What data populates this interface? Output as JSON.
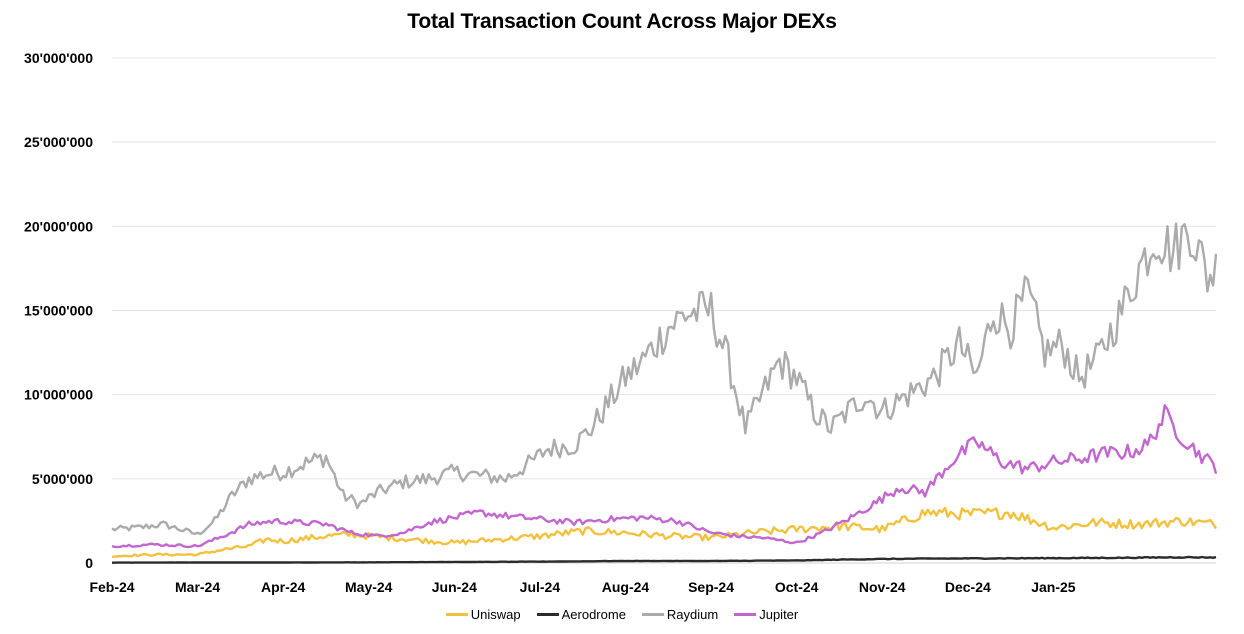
{
  "chart_data": {
    "type": "line",
    "title": "Total Transaction Count Across Major DEXs",
    "xlabel": "",
    "ylabel": "",
    "ylim": [
      0,
      30000000
    ],
    "y_ticks": [
      0,
      5000000,
      10000000,
      15000000,
      20000000,
      25000000,
      30000000
    ],
    "y_tick_labels": [
      "0",
      "5'000'000",
      "10'000'000",
      "15'000'000",
      "20'000'000",
      "25'000'000",
      "30'000'000"
    ],
    "x_tick_labels": [
      "Feb-24",
      "Mar-24",
      "Apr-24",
      "May-24",
      "Jun-24",
      "Jul-24",
      "Aug-24",
      "Sep-24",
      "Oct-24",
      "Nov-24",
      "Dec-24",
      "Jan-25"
    ],
    "x_range_months": [
      0,
      12.9
    ],
    "grid": "horizontal",
    "legend_position": "bottom",
    "series": [
      {
        "name": "Uniswap",
        "color": "#F2C13D",
        "points": [
          [
            0,
            400000
          ],
          [
            0.5,
            500000
          ],
          [
            1,
            500000
          ],
          [
            1.3,
            800000
          ],
          [
            1.6,
            1000000
          ],
          [
            1.8,
            1400000
          ],
          [
            2,
            1300000
          ],
          [
            2.5,
            1600000
          ],
          [
            2.8,
            1700000
          ],
          [
            3,
            1600000
          ],
          [
            3.5,
            1400000
          ],
          [
            4,
            1200000
          ],
          [
            4.5,
            1400000
          ],
          [
            5,
            1600000
          ],
          [
            5.5,
            1900000
          ],
          [
            6,
            1800000
          ],
          [
            6.5,
            1600000
          ],
          [
            7,
            1500000
          ],
          [
            7.5,
            1800000
          ],
          [
            8,
            2000000
          ],
          [
            8.5,
            2200000
          ],
          [
            9,
            2000000
          ],
          [
            9.3,
            2600000
          ],
          [
            9.5,
            3000000
          ],
          [
            10,
            2900000
          ],
          [
            10.5,
            3000000
          ],
          [
            11,
            2100000
          ],
          [
            11.5,
            2400000
          ],
          [
            12,
            2300000
          ],
          [
            12.5,
            2500000
          ],
          [
            12.9,
            2300000
          ]
        ]
      },
      {
        "name": "Aerodrome",
        "color": "#2B2B2B",
        "points": [
          [
            0,
            20000
          ],
          [
            1,
            30000
          ],
          [
            2,
            30000
          ],
          [
            3,
            40000
          ],
          [
            4,
            60000
          ],
          [
            5,
            80000
          ],
          [
            6,
            120000
          ],
          [
            7,
            120000
          ],
          [
            8,
            150000
          ],
          [
            8.5,
            200000
          ],
          [
            9,
            240000
          ],
          [
            9.5,
            260000
          ],
          [
            10,
            270000
          ],
          [
            10.5,
            280000
          ],
          [
            11,
            290000
          ],
          [
            11.5,
            300000
          ],
          [
            12,
            320000
          ],
          [
            12.5,
            340000
          ],
          [
            12.9,
            330000
          ]
        ]
      },
      {
        "name": "Raydium",
        "color": "#ABABAB",
        "points": [
          [
            0,
            2000000
          ],
          [
            0.3,
            2100000
          ],
          [
            0.6,
            2300000
          ],
          [
            0.8,
            2000000
          ],
          [
            1,
            1700000
          ],
          [
            1.2,
            2500000
          ],
          [
            1.4,
            4000000
          ],
          [
            1.6,
            5000000
          ],
          [
            1.8,
            5300000
          ],
          [
            2,
            5400000
          ],
          [
            2.3,
            6000000
          ],
          [
            2.5,
            6300000
          ],
          [
            2.7,
            4000000
          ],
          [
            2.9,
            3500000
          ],
          [
            3.1,
            4200000
          ],
          [
            3.4,
            4800000
          ],
          [
            3.7,
            5000000
          ],
          [
            4,
            5400000
          ],
          [
            4.3,
            5200000
          ],
          [
            4.6,
            5000000
          ],
          [
            4.9,
            6000000
          ],
          [
            5.1,
            6800000
          ],
          [
            5.4,
            7000000
          ],
          [
            5.6,
            8000000
          ],
          [
            5.8,
            9500000
          ],
          [
            6,
            11000000
          ],
          [
            6.2,
            12000000
          ],
          [
            6.5,
            14000000
          ],
          [
            6.7,
            14800000
          ],
          [
            7,
            15000000
          ],
          [
            7.2,
            12000000
          ],
          [
            7.4,
            8000000
          ],
          [
            7.6,
            10000000
          ],
          [
            7.8,
            12000000
          ],
          [
            8,
            11000000
          ],
          [
            8.2,
            9000000
          ],
          [
            8.4,
            8000000
          ],
          [
            8.6,
            9000000
          ],
          [
            8.8,
            10000000
          ],
          [
            9,
            9000000
          ],
          [
            9.3,
            10000000
          ],
          [
            9.6,
            11000000
          ],
          [
            9.9,
            13000000
          ],
          [
            10.1,
            11000000
          ],
          [
            10.3,
            15000000
          ],
          [
            10.5,
            14000000
          ],
          [
            10.7,
            16000000
          ],
          [
            10.9,
            12500000
          ],
          [
            11.1,
            13000000
          ],
          [
            11.3,
            11000000
          ],
          [
            11.5,
            12000000
          ],
          [
            11.8,
            15000000
          ],
          [
            12,
            17500000
          ],
          [
            12.2,
            19500000
          ],
          [
            12.4,
            18500000
          ],
          [
            12.6,
            20000000
          ],
          [
            12.8,
            17000000
          ],
          [
            12.9,
            17500000
          ]
        ]
      },
      {
        "name": "Jupiter",
        "color": "#C266D0",
        "points": [
          [
            0,
            1000000
          ],
          [
            0.5,
            1100000
          ],
          [
            1,
            1000000
          ],
          [
            1.3,
            1600000
          ],
          [
            1.6,
            2300000
          ],
          [
            1.9,
            2500000
          ],
          [
            2.2,
            2400000
          ],
          [
            2.5,
            2300000
          ],
          [
            2.8,
            1800000
          ],
          [
            3.1,
            1600000
          ],
          [
            3.4,
            1800000
          ],
          [
            3.7,
            2400000
          ],
          [
            4,
            2700000
          ],
          [
            4.3,
            3000000
          ],
          [
            4.6,
            2800000
          ],
          [
            5,
            2600000
          ],
          [
            5.4,
            2400000
          ],
          [
            5.8,
            2600000
          ],
          [
            6.2,
            2700000
          ],
          [
            6.6,
            2500000
          ],
          [
            7,
            1800000
          ],
          [
            7.3,
            1600000
          ],
          [
            7.6,
            1500000
          ],
          [
            8,
            1200000
          ],
          [
            8.3,
            1800000
          ],
          [
            8.6,
            2600000
          ],
          [
            8.9,
            3500000
          ],
          [
            9.2,
            4500000
          ],
          [
            9.5,
            4200000
          ],
          [
            9.8,
            6000000
          ],
          [
            10.1,
            7200000
          ],
          [
            10.4,
            6000000
          ],
          [
            10.7,
            5600000
          ],
          [
            11,
            6000000
          ],
          [
            11.3,
            6200000
          ],
          [
            11.6,
            6500000
          ],
          [
            11.9,
            6600000
          ],
          [
            12.1,
            7000000
          ],
          [
            12.3,
            8800000
          ],
          [
            12.5,
            7500000
          ],
          [
            12.7,
            6500000
          ],
          [
            12.9,
            5700000
          ]
        ]
      }
    ]
  }
}
